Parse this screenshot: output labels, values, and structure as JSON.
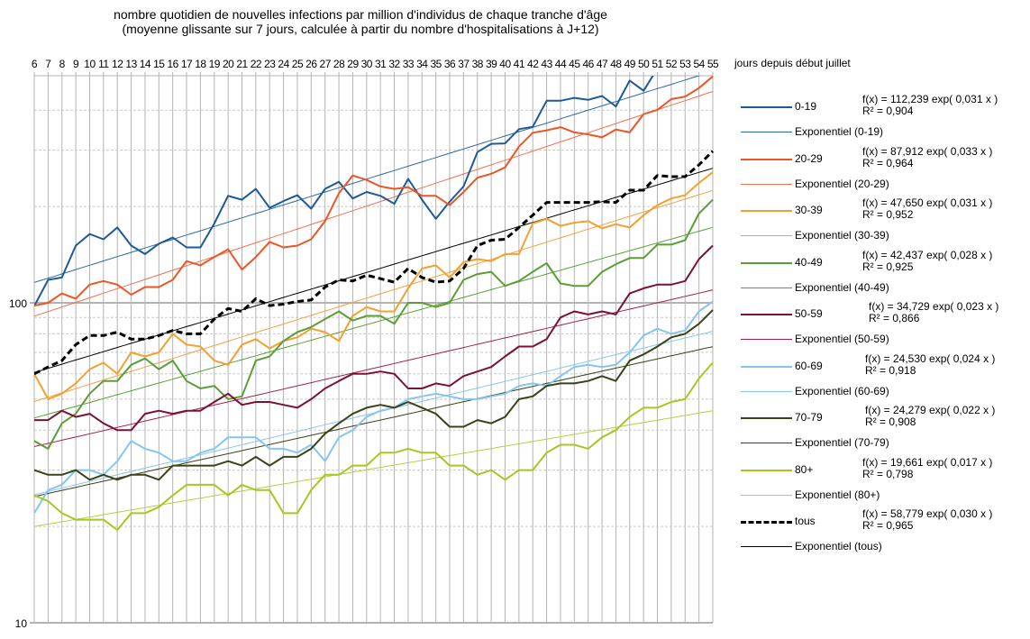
{
  "chart_data": {
    "type": "line",
    "title": "nombre quotidien de nouvelles infections par million d'individus de chaque tranche d'âge",
    "subtitle": "(moyenne glissante sur 7 jours, calculée à partir du nombre d'hospitalisations à J+12)",
    "xlabel": "jours depuis début juillet",
    "ylabel": "",
    "yscale": "log",
    "ylim": [
      10,
      513
    ],
    "y_tick_labels": [
      "10",
      "100"
    ],
    "x": [
      6,
      7,
      8,
      9,
      10,
      11,
      12,
      13,
      14,
      15,
      16,
      17,
      18,
      19,
      20,
      21,
      22,
      23,
      24,
      25,
      26,
      27,
      28,
      29,
      30,
      31,
      32,
      33,
      34,
      35,
      36,
      37,
      38,
      39,
      40,
      41,
      42,
      43,
      44,
      45,
      46,
      47,
      48,
      49,
      50,
      51,
      52,
      53,
      54,
      55
    ],
    "xlim": [
      6,
      55
    ],
    "grid": true,
    "legend_position": "right",
    "series": [
      {
        "name": "0-19",
        "color": "#1f5a96",
        "dashed": false,
        "fit": {
          "label": "Exponentiel (0-19)",
          "equation": "f(x) = 112,239 exp( 0,031 x )",
          "r2": "R² = 0,904",
          "a": 112.239,
          "b": 0.031,
          "color": "#2a6aaa"
        },
        "values": [
          97.6,
          118,
          120,
          151,
          164,
          158,
          172,
          151,
          142,
          153,
          160,
          149,
          149,
          177,
          216,
          210,
          227,
          198,
          208,
          217,
          197,
          227,
          239,
          212,
          222,
          216,
          204,
          244,
          210,
          183,
          207,
          231,
          296,
          314,
          315,
          349,
          355,
          428,
          428,
          437,
          431,
          443,
          411,
          495,
          460,
          540,
          563,
          550,
          530,
          560
        ]
      },
      {
        "name": "20-29",
        "color": "#ee5524",
        "dashed": false,
        "fit": {
          "label": "Exponentiel (20-29)",
          "equation": "f(x) = 87,912 exp( 0,033 x )",
          "r2": "R² = 0,964",
          "a": 87.912,
          "b": 0.033,
          "color": "#f07050"
        },
        "values": [
          98,
          100,
          107,
          103,
          114,
          117,
          114,
          106,
          112,
          112,
          118,
          135,
          131,
          139,
          147,
          127,
          139,
          155,
          149,
          151,
          158,
          180,
          220,
          250,
          242,
          231,
          227,
          230,
          216,
          216,
          202,
          222,
          246,
          253,
          265,
          308,
          340,
          346,
          354,
          341,
          336,
          329,
          348,
          341,
          389,
          401,
          433,
          441,
          469,
          510
        ]
      },
      {
        "name": "30-39",
        "color": "#f5a02c",
        "dashed": false,
        "fit": {
          "label": "Exponentiel (30-39)",
          "equation": "f(x) = 47,650 exp( 0,031 x )",
          "r2": "R² = 0,952",
          "a": 47.65,
          "b": 0.031,
          "color": "#f5a040"
        },
        "values": [
          60,
          50,
          52,
          56,
          62,
          65,
          60,
          70,
          68,
          70,
          80,
          74,
          73,
          66,
          64,
          74,
          77,
          72,
          76,
          78,
          83,
          81,
          76,
          91,
          97,
          94,
          94,
          111,
          128,
          131,
          120,
          134,
          137,
          135,
          142,
          142,
          177,
          183,
          174,
          178,
          180,
          171,
          176,
          172,
          188,
          202,
          212,
          217,
          237,
          256
        ]
      },
      {
        "name": "40-49",
        "color": "#5a9e35",
        "dashed": false,
        "fit": {
          "label": "Exponentiel (40-49)",
          "equation": "f(x) = 42,437 exp( 0,028 x )",
          "r2": "R² = 0,925",
          "a": 42.437,
          "b": 0.028,
          "color": "#5a9e35"
        },
        "values": [
          37,
          35,
          42,
          45,
          52,
          57,
          57,
          64,
          67,
          62,
          66,
          57,
          54,
          55,
          50,
          51,
          66,
          68,
          76,
          81,
          84,
          89,
          94,
          88,
          91,
          91,
          86,
          100,
          100,
          97,
          100,
          118,
          123,
          125,
          113,
          117,
          125,
          133,
          115,
          113,
          113,
          125,
          132,
          138,
          138,
          152,
          152,
          157,
          190,
          210
        ]
      },
      {
        "name": "50-59",
        "color": "#7d1035",
        "dashed": false,
        "fit": {
          "label": "Exponentiel (50-59)",
          "equation": "f(x) = 34,729 exp( 0,023 x )",
          "r2": "R² = 0,866",
          "a": 34.729,
          "b": 0.023,
          "color": "#a02050"
        },
        "values": [
          43,
          43,
          46,
          44,
          45,
          42,
          40,
          40,
          45,
          46,
          45,
          46,
          46,
          49,
          52,
          48,
          49,
          49,
          48,
          47,
          50,
          54,
          57,
          60,
          60,
          61,
          60,
          54,
          54,
          56,
          55,
          59,
          61,
          63,
          68,
          73,
          73,
          77,
          90,
          94,
          92,
          94,
          92,
          107,
          111,
          114,
          114,
          117,
          137,
          151
        ]
      },
      {
        "name": "60-69",
        "color": "#85c5f0",
        "dashed": false,
        "fit": {
          "label": "Exponentiel (60-69)",
          "equation": "f(x) = 24,530 exp( 0,024 x )",
          "r2": "R² = 0,918",
          "a": 24.53,
          "b": 0.024,
          "color": "#85c5f0"
        },
        "values": [
          22,
          26,
          27,
          30,
          30,
          29,
          32,
          37,
          35,
          34,
          32,
          32,
          34,
          35,
          38,
          38,
          38,
          35,
          35,
          34,
          36,
          32,
          38,
          40,
          44,
          46,
          47,
          50,
          51,
          52,
          51,
          50,
          50,
          51,
          52,
          55,
          56,
          55,
          59,
          63,
          64,
          63,
          64,
          70,
          79,
          83,
          80,
          82,
          94,
          101
        ]
      },
      {
        "name": "70-79",
        "color": "#3a4218",
        "dashed": false,
        "fit": {
          "label": "Exponentiel (70-79)",
          "equation": "f(x) = 24,279 exp( 0,022 x )",
          "r2": "R² = 0,908",
          "a": 24.279,
          "b": 0.022,
          "color": "#3a4218"
        },
        "values": [
          30,
          29,
          29,
          30,
          28,
          29,
          28,
          29,
          29,
          28,
          31,
          31,
          31,
          31,
          32,
          31,
          33,
          31,
          33,
          33,
          35,
          39,
          42,
          45,
          47,
          48,
          47,
          49,
          47,
          45,
          41,
          41,
          43,
          42,
          44,
          50,
          51,
          55,
          56,
          56,
          57,
          59,
          57,
          66,
          69,
          73,
          78,
          80,
          86,
          95
        ]
      },
      {
        "name": "80+",
        "color": "#a5c820",
        "dashed": false,
        "fit": {
          "label": "Exponentiel (80+)",
          "equation": "f(x) = 19,661 exp( 0,017 x )",
          "r2": "R² = 0,798",
          "a": 19.661,
          "b": 0.017,
          "color": "#b5d040"
        },
        "values": [
          25,
          24,
          22,
          21,
          21,
          21,
          19.5,
          22,
          22,
          23,
          25,
          27,
          27,
          27,
          25,
          27,
          26,
          26,
          22,
          22,
          26,
          29,
          29,
          31,
          31,
          34,
          34,
          35,
          34,
          34,
          31,
          31,
          29,
          30,
          28,
          30,
          30,
          34,
          36,
          36,
          35,
          38,
          40,
          44,
          47,
          47,
          49,
          50,
          58,
          65
        ]
      },
      {
        "name": "tous",
        "color": "#000000",
        "dashed": true,
        "fit": {
          "label": "Exponentiel (tous)",
          "equation": "f(x) = 58,779 exp( 0,030 x )",
          "r2": "R² = 0,965",
          "a": 58.779,
          "b": 0.03,
          "color": "#000000"
        },
        "values": [
          60,
          63,
          66,
          74,
          79,
          79,
          81,
          77,
          77,
          79,
          82,
          80,
          80,
          89,
          96,
          94,
          103,
          98,
          99,
          101,
          102,
          112,
          118,
          117,
          122,
          119,
          116,
          128,
          120,
          116,
          117,
          128,
          151,
          157,
          158,
          172,
          188,
          206,
          206,
          206,
          206,
          207,
          206,
          225,
          225,
          250,
          248,
          248,
          270,
          298
        ]
      }
    ]
  }
}
